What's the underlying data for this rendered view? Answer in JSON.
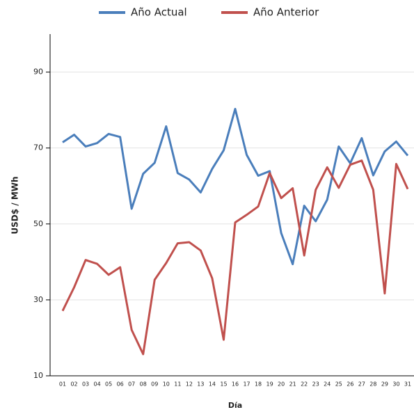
{
  "chart_data": {
    "type": "line",
    "y_label": "USD$ / MWh",
    "x_label": "Día",
    "categories": [
      "01",
      "02",
      "03",
      "04",
      "05",
      "06",
      "07",
      "08",
      "09",
      "10",
      "11",
      "12",
      "13",
      "14",
      "15",
      "16",
      "17",
      "18",
      "19",
      "20",
      "21",
      "22",
      "23",
      "24",
      "25",
      "26",
      "27",
      "28",
      "29",
      "30",
      "31"
    ],
    "series": [
      {
        "name": "Año Actual",
        "color": "#4a7ebb",
        "values": [
          71.5,
          73.5,
          70.4,
          71.3,
          73.7,
          72.9,
          54.0,
          63.2,
          66.1,
          75.7,
          63.4,
          61.7,
          58.3,
          64.5,
          69.4,
          80.3,
          68.2,
          62.7,
          63.9,
          47.6,
          39.4,
          54.8,
          50.7,
          56.4,
          70.4,
          66.0,
          72.6,
          62.8,
          69.1,
          71.7,
          68.0
        ]
      },
      {
        "name": "Año Anterior",
        "color": "#c0504d",
        "values": [
          27.1,
          33.3,
          40.5,
          39.5,
          36.6,
          38.6,
          22.1,
          15.7,
          35.3,
          39.7,
          44.9,
          45.2,
          43.0,
          35.7,
          19.5,
          50.4,
          52.4,
          54.6,
          63.4,
          56.8,
          59.4,
          41.7,
          59.0,
          64.9,
          59.5,
          65.6,
          66.7,
          59.0,
          31.7,
          65.8,
          59.2
        ]
      }
    ],
    "ylim": [
      10,
      100
    ],
    "yticks": [
      10,
      30,
      50,
      70,
      90
    ],
    "grid": true,
    "legend": "top"
  }
}
